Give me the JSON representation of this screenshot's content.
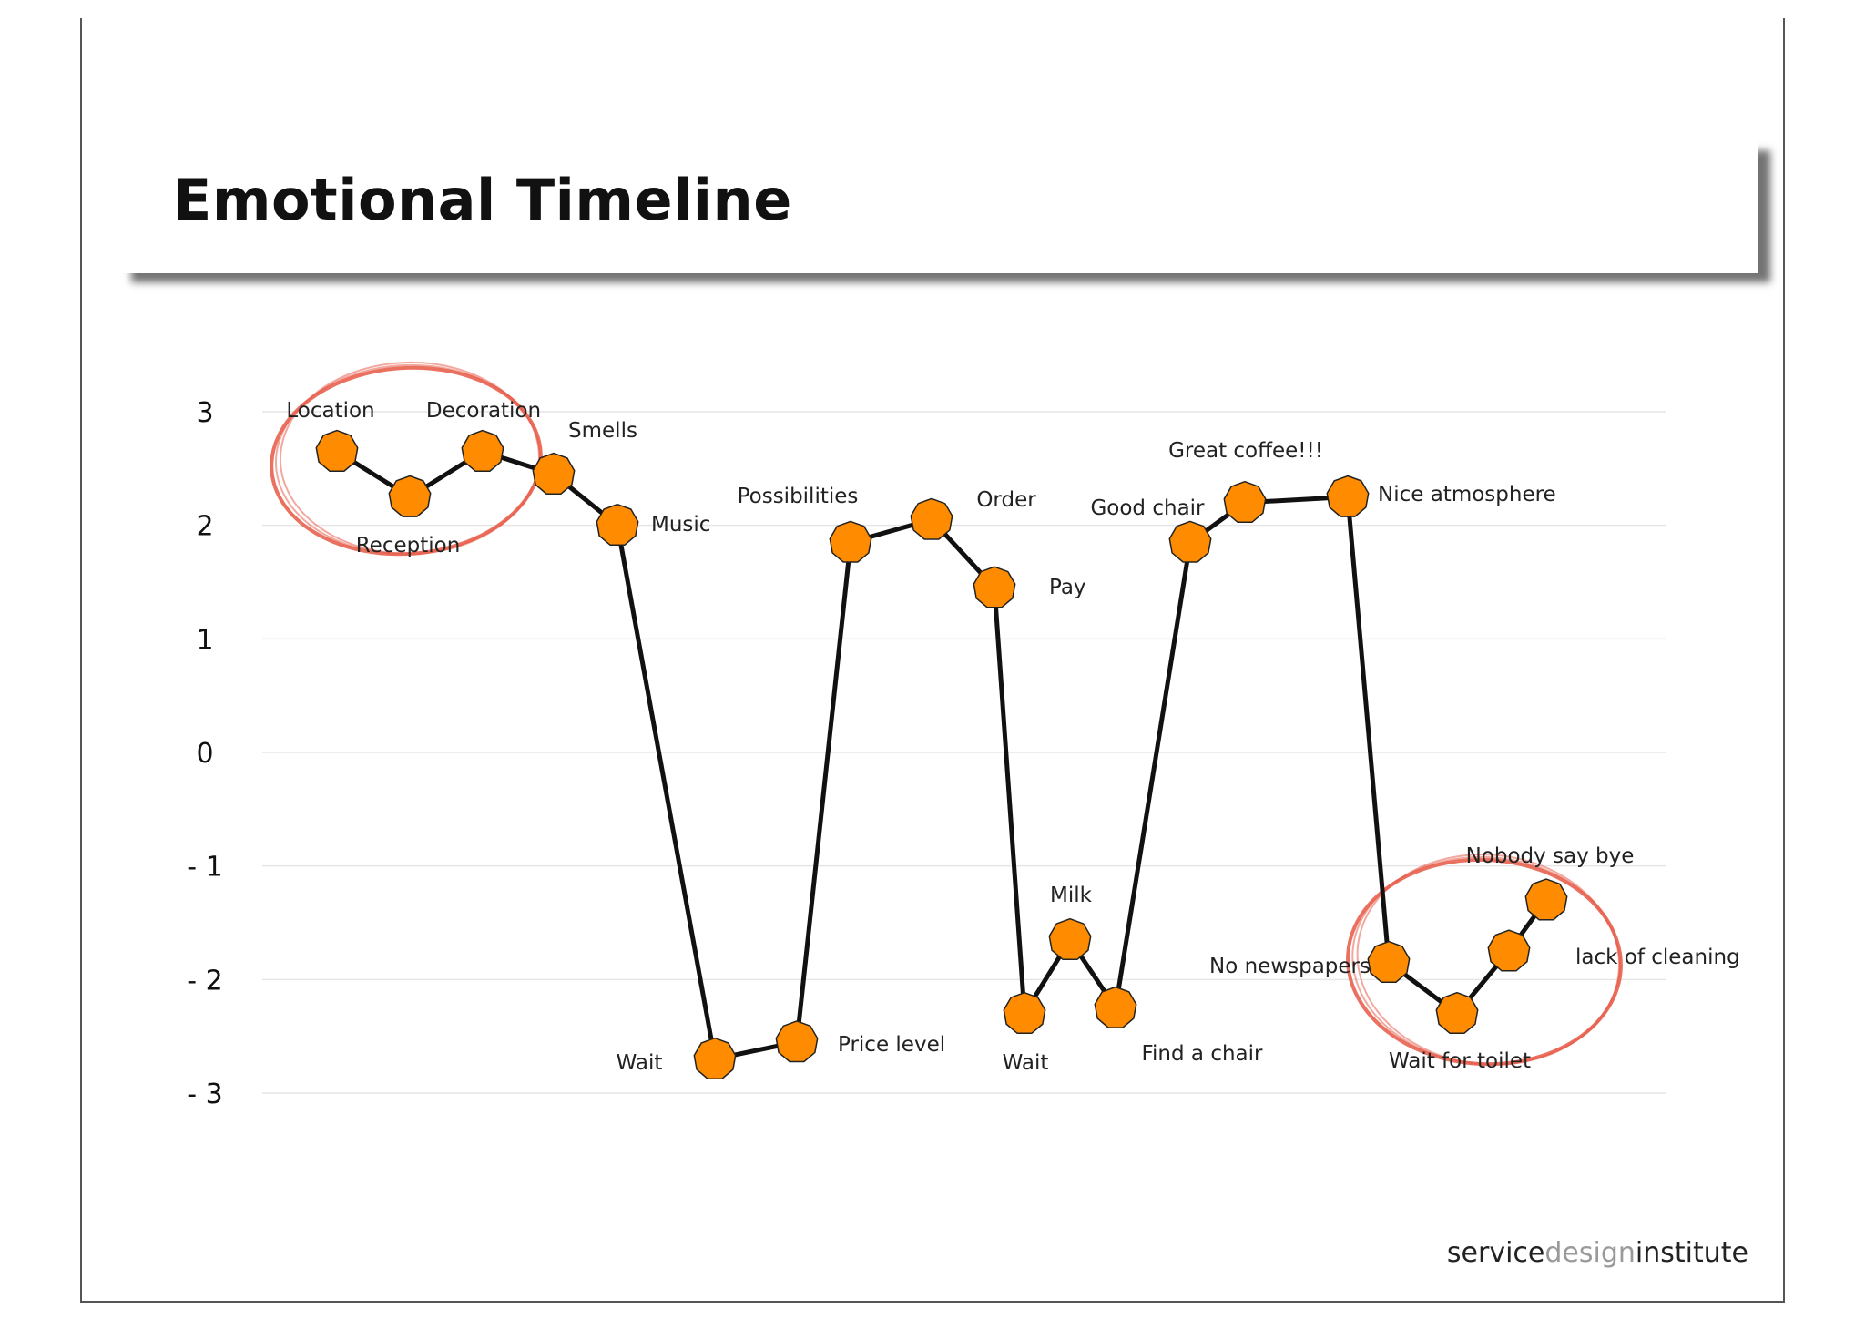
{
  "title": "Emotional Timeline",
  "brand": {
    "part1": "service",
    "part2": "design",
    "part3": "institute"
  },
  "colors": {
    "marker": "#FF8C00",
    "line": "#111111",
    "highlight": "#E8614F",
    "grid": "#E6E6E6"
  },
  "chart_data": {
    "type": "line",
    "title": "Emotional Timeline",
    "xlabel": "",
    "ylabel": "",
    "ylim": [
      -3,
      3
    ],
    "y_ticks": [
      "3",
      "2",
      "1",
      "0",
      "- 1",
      "- 2",
      "- 3"
    ],
    "grid": true,
    "legend": "none",
    "series": [
      {
        "points": [
          {
            "label": "Location",
            "step": 1,
            "y": 2.65
          },
          {
            "label": "Reception",
            "step": 2,
            "y": 2.25
          },
          {
            "label": "Decoration",
            "step": 3,
            "y": 2.65
          },
          {
            "label": "Smells",
            "step": 4,
            "y": 2.45
          },
          {
            "label": "Music",
            "step": 5,
            "y": 2.0
          },
          {
            "label": "Wait",
            "step": 6,
            "y": -2.7
          },
          {
            "label": "Price level",
            "step": 7,
            "y": -2.55
          },
          {
            "label": "Possibilities",
            "step": 8,
            "y": 1.85
          },
          {
            "label": "Order",
            "step": 9,
            "y": 2.05
          },
          {
            "label": "Pay",
            "step": 10,
            "y": 1.45
          },
          {
            "label": "Wait",
            "step": 11,
            "y": -2.3
          },
          {
            "label": "Milk",
            "step": 12,
            "y": -1.65
          },
          {
            "label": "Find a chair",
            "step": 13,
            "y": -2.25
          },
          {
            "label": "Good chair",
            "step": 14,
            "y": 1.85
          },
          {
            "label": "Great coffee!!!",
            "step": 15,
            "y": 2.2
          },
          {
            "label": "Nice atmosphere",
            "step": 16,
            "y": 2.25
          },
          {
            "label": "No newspapers",
            "step": 17,
            "y": -1.85
          },
          {
            "label": "Wait for toilet",
            "step": 18,
            "y": -2.3
          },
          {
            "label": "lack of cleaning",
            "step": 19,
            "y": -1.75
          },
          {
            "label": "Nobody say bye",
            "step": 20,
            "y": -1.3
          }
        ]
      }
    ],
    "highlighted_groups": [
      [
        "Location",
        "Reception",
        "Decoration"
      ],
      [
        "No newspapers",
        "Wait for toilet",
        "lack of cleaning",
        "Nobody say bye"
      ]
    ]
  }
}
